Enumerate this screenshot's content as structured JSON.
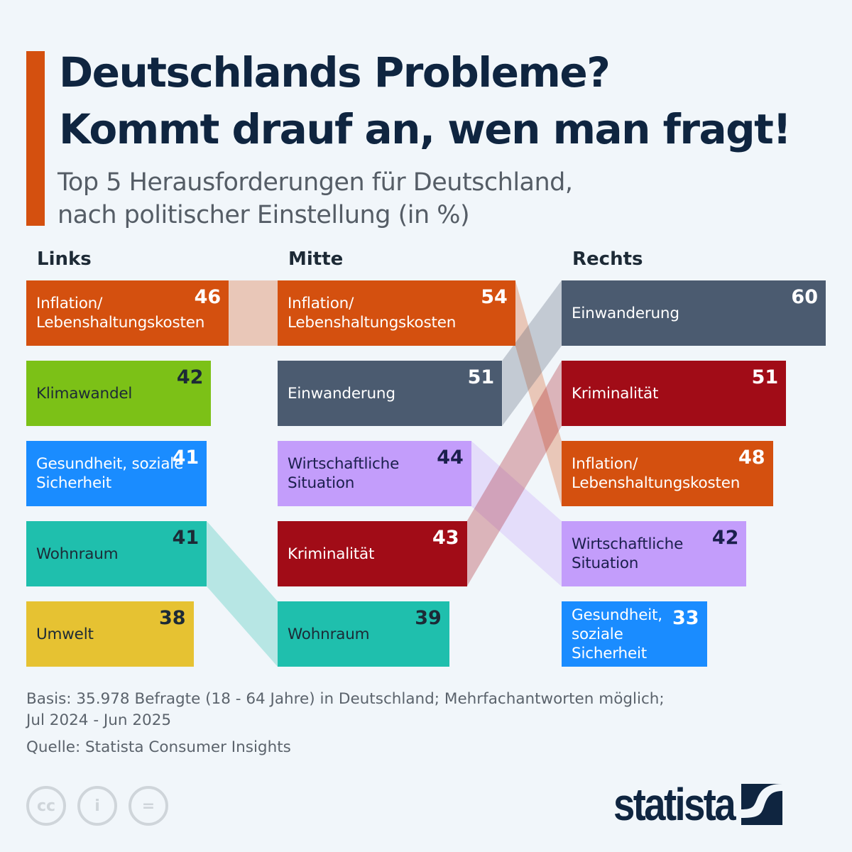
{
  "title_line1": "Deutschlands Probleme?",
  "title_line2": "Kommt drauf an, wen man fragt!",
  "subtitle_line1": "Top 5 Herausforderungen für Deutschland,",
  "subtitle_line2": "nach politischer Einstellung (in %)",
  "footnote_basis_line1": "Basis: 35.978 Befragte (18 - 64 Jahre) in Deutschland; Mehrfachantworten möglich;",
  "footnote_basis_line2": "Jul 2024 - Jun 2025",
  "footnote_source": "Quelle: Statista Consumer Insights",
  "license_icons": [
    "cc-icon",
    "attribution-icon",
    "no-derivatives-icon"
  ],
  "brand": "statista",
  "chart_data": {
    "type": "bar",
    "orientation": "horizontal",
    "unit": "%",
    "columns": [
      {
        "name": "Links",
        "items": [
          {
            "label": "Inflation/ Lebenshaltungskosten",
            "value": 46
          },
          {
            "label": "Klimawandel",
            "value": 42
          },
          {
            "label": "Gesundheit, soziale Sicherheit",
            "value": 41
          },
          {
            "label": "Wohnraum",
            "value": 41
          },
          {
            "label": "Umwelt",
            "value": 38
          }
        ]
      },
      {
        "name": "Mitte",
        "items": [
          {
            "label": "Inflation/ Lebenshaltungskosten",
            "value": 54
          },
          {
            "label": "Einwanderung",
            "value": 51
          },
          {
            "label": "Wirtschaftliche Situation",
            "value": 44
          },
          {
            "label": "Kriminalität",
            "value": 43
          },
          {
            "label": "Wohnraum",
            "value": 39
          }
        ]
      },
      {
        "name": "Rechts",
        "items": [
          {
            "label": "Einwanderung",
            "value": 60
          },
          {
            "label": "Kriminalität",
            "value": 51
          },
          {
            "label": "Inflation/ Lebenshaltungskosten",
            "value": 48
          },
          {
            "label": "Wirtschaftliche Situation",
            "value": 42
          },
          {
            "label": "Gesundheit, soziale Sicherheit",
            "value": 33
          }
        ]
      }
    ],
    "category_colors": {
      "Inflation/ Lebenshaltungskosten": "#d4500f",
      "Klimawandel": "#7cc117",
      "Gesundheit, soziale Sicherheit": "#1a8cff",
      "Wohnraum": "#1fbfad",
      "Umwelt": "#e6c232",
      "Einwanderung": "#4b5b70",
      "Wirtschaftliche Situation": "#c39dfb",
      "Kriminalität": "#a10c17"
    }
  }
}
